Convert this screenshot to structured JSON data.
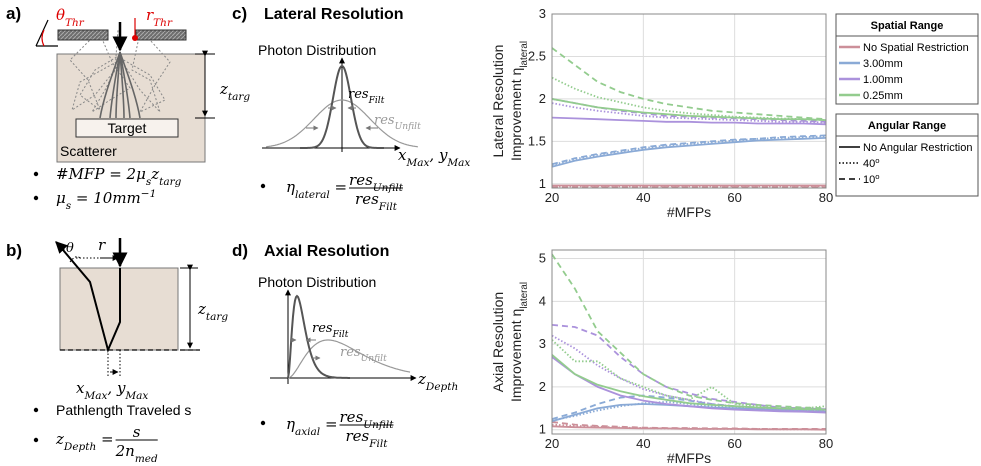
{
  "panels": {
    "a": {
      "label": "a)",
      "theta_thr": [
        {
          "text": "θ"
        },
        {
          "text": "Thr",
          "sub": true
        }
      ],
      "r_thr": [
        {
          "text": "r"
        },
        {
          "text": "Thr",
          "sub": true
        }
      ],
      "z_targ": [
        {
          "text": "z"
        },
        {
          "text": "targ",
          "sub": true
        }
      ],
      "target": "Target",
      "scatterer": "Scatterer",
      "bullets": [
        [
          {
            "text": "#MFP = 2μ"
          },
          {
            "text": "s",
            "sub": true
          },
          {
            "text": "z"
          },
          {
            "text": "targ",
            "sub": true
          }
        ],
        [
          {
            "text": "μ"
          },
          {
            "text": "s",
            "sub": true
          },
          {
            "text": " = 10mm"
          },
          {
            "text": "−1",
            "sup": true
          }
        ]
      ]
    },
    "b": {
      "label": "b)",
      "theta": "θ",
      "r": "r",
      "z_targ": [
        {
          "text": "z"
        },
        {
          "text": "targ",
          "sub": true
        }
      ],
      "xy_max": [
        {
          "text": "x"
        },
        {
          "text": "Max",
          "sub": true
        },
        {
          "text": ", y"
        },
        {
          "text": "Max",
          "sub": true
        }
      ],
      "pathlength": "Pathlength Traveled s",
      "z_depth": {
        "lhs": [
          {
            "text": "z"
          },
          {
            "text": "Depth",
            "sub": true
          },
          {
            "text": " = "
          }
        ],
        "num": [
          {
            "text": "s"
          }
        ],
        "den": [
          {
            "text": "2n"
          },
          {
            "text": "med",
            "sub": true
          }
        ]
      }
    },
    "c": {
      "label": "c)",
      "title": "Lateral Resolution",
      "subtitle": "Photon Distribution",
      "res_filt": [
        {
          "text": "res"
        },
        {
          "text": "Filt",
          "sub": true
        }
      ],
      "res_unfilt": [
        {
          "text": "res"
        },
        {
          "text": "Unfilt",
          "sub": true
        }
      ],
      "axis": [
        {
          "text": "x"
        },
        {
          "text": "Max",
          "sub": true
        },
        {
          "text": ", y"
        },
        {
          "text": "Max",
          "sub": true
        }
      ],
      "eta": {
        "lhs": [
          {
            "text": "η"
          },
          {
            "text": "lateral",
            "sub": true
          },
          {
            "text": " = "
          }
        ],
        "num": [
          {
            "text": "res"
          },
          {
            "text": "Unfilt",
            "sub": true
          }
        ],
        "den": [
          {
            "text": "res"
          },
          {
            "text": "Filt",
            "sub": true
          }
        ]
      }
    },
    "d": {
      "label": "d)",
      "title": "Axial Resolution",
      "subtitle": "Photon Distribution",
      "res_filt": [
        {
          "text": "res"
        },
        {
          "text": "Filt",
          "sub": true
        }
      ],
      "res_unfilt": [
        {
          "text": "res"
        },
        {
          "text": "Unfilt",
          "sub": true
        }
      ],
      "axis": [
        {
          "text": "z"
        },
        {
          "text": "Depth",
          "sub": true
        }
      ],
      "eta": {
        "lhs": [
          {
            "text": "η"
          },
          {
            "text": "axial",
            "sub": true
          },
          {
            "text": " = "
          }
        ],
        "num": [
          {
            "text": "res"
          },
          {
            "text": "Unfilt",
            "sub": true
          }
        ],
        "den": [
          {
            "text": "res"
          },
          {
            "text": "Filt",
            "sub": true
          }
        ]
      }
    }
  },
  "legend": {
    "groups": [
      {
        "title": "Spatial Range",
        "entries": [
          {
            "label": "No Spatial Restriction",
            "color": "#cc8f99"
          },
          {
            "label": "3.00mm",
            "color": "#8aaad6"
          },
          {
            "label": "1.00mm",
            "color": "#ab92dc"
          },
          {
            "label": "0.25mm",
            "color": "#93cc8e"
          }
        ]
      },
      {
        "title": "Angular Range",
        "entries": [
          {
            "label": "No Angular Restriction",
            "dash": "solid"
          },
          {
            "label": [
              {
                "text": "40"
              },
              {
                "text": "o",
                "sup": true
              }
            ],
            "dash": "dotted"
          },
          {
            "label": [
              {
                "text": "10"
              },
              {
                "text": "o",
                "sup": true
              }
            ],
            "dash": "dashed"
          }
        ]
      }
    ]
  },
  "chart_data": [
    {
      "type": "line",
      "ylabel": [
        [
          {
            "text": "Lateral Resolution"
          }
        ],
        [
          {
            "text": "Improvement η"
          },
          {
            "text": "lateral",
            "sub": true
          }
        ]
      ],
      "xlabel": "#MFPs",
      "xlim": [
        20,
        80
      ],
      "xticks": [
        20,
        40,
        60,
        80
      ],
      "ylim": [
        0.95,
        3
      ],
      "yticks": [
        1,
        1.5,
        2,
        2.5,
        3
      ],
      "grid": true,
      "x": [
        20,
        25,
        30,
        35,
        40,
        45,
        50,
        55,
        60,
        65,
        70,
        75,
        80
      ],
      "series": [
        {
          "color": "#cc8f99",
          "dash": "solid",
          "values": [
            0.98,
            0.98,
            0.98,
            0.98,
            0.98,
            0.98,
            0.98,
            0.98,
            0.98,
            0.98,
            0.98,
            0.98,
            0.98
          ]
        },
        {
          "color": "#cc8f99",
          "dash": "dotted",
          "values": [
            0.97,
            0.97,
            0.97,
            0.97,
            0.97,
            0.97,
            0.97,
            0.97,
            0.97,
            0.97,
            0.97,
            0.97,
            0.97
          ]
        },
        {
          "color": "#cc8f99",
          "dash": "dashed",
          "values": [
            0.96,
            0.96,
            0.96,
            0.96,
            0.96,
            0.96,
            0.96,
            0.96,
            0.96,
            0.96,
            0.96,
            0.96,
            0.96
          ]
        },
        {
          "color": "#8aaad6",
          "dash": "solid",
          "values": [
            1.2,
            1.27,
            1.32,
            1.36,
            1.4,
            1.43,
            1.45,
            1.47,
            1.49,
            1.51,
            1.52,
            1.53,
            1.54
          ]
        },
        {
          "color": "#8aaad6",
          "dash": "dotted",
          "values": [
            1.22,
            1.29,
            1.34,
            1.38,
            1.42,
            1.45,
            1.47,
            1.49,
            1.51,
            1.53,
            1.54,
            1.55,
            1.56
          ]
        },
        {
          "color": "#8aaad6",
          "dash": "dashed",
          "values": [
            1.23,
            1.3,
            1.35,
            1.39,
            1.43,
            1.46,
            1.48,
            1.5,
            1.52,
            1.53,
            1.55,
            1.56,
            1.57
          ]
        },
        {
          "color": "#ab92dc",
          "dash": "solid",
          "values": [
            1.78,
            1.77,
            1.76,
            1.75,
            1.74,
            1.73,
            1.73,
            1.72,
            1.72,
            1.71,
            1.71,
            1.71,
            1.7
          ]
        },
        {
          "color": "#ab92dc",
          "dash": "dotted",
          "values": [
            1.95,
            1.9,
            1.86,
            1.83,
            1.8,
            1.78,
            1.77,
            1.76,
            1.75,
            1.74,
            1.73,
            1.73,
            1.72
          ]
        },
        {
          "color": "#ab92dc",
          "dash": "dashed",
          "values": [
            2.0,
            1.95,
            1.9,
            1.86,
            1.83,
            1.8,
            1.79,
            1.78,
            1.77,
            1.76,
            1.75,
            1.74,
            1.73
          ]
        },
        {
          "color": "#93cc8e",
          "dash": "solid",
          "values": [
            2.0,
            1.95,
            1.9,
            1.87,
            1.84,
            1.82,
            1.8,
            1.79,
            1.78,
            1.77,
            1.76,
            1.76,
            1.75
          ]
        },
        {
          "color": "#93cc8e",
          "dash": "dotted",
          "values": [
            2.25,
            2.12,
            2.02,
            1.96,
            1.9,
            1.86,
            1.83,
            1.81,
            1.79,
            1.78,
            1.77,
            1.76,
            1.75
          ]
        },
        {
          "color": "#93cc8e",
          "dash": "dashed",
          "values": [
            2.6,
            2.4,
            2.2,
            2.08,
            2.0,
            1.94,
            1.9,
            1.86,
            1.84,
            1.82,
            1.8,
            1.78,
            1.76
          ]
        }
      ]
    },
    {
      "type": "line",
      "ylabel": [
        [
          {
            "text": "Axial Resolution"
          }
        ],
        [
          {
            "text": "Improvement η"
          },
          {
            "text": "lateral",
            "sub": true
          }
        ]
      ],
      "xlabel": "#MFPs",
      "xlim": [
        20,
        80
      ],
      "xticks": [
        20,
        40,
        60,
        80
      ],
      "ylim": [
        0.9,
        5.2
      ],
      "yticks": [
        1,
        2,
        3,
        4,
        5
      ],
      "grid": true,
      "x": [
        20,
        25,
        30,
        35,
        40,
        45,
        50,
        55,
        60,
        65,
        70,
        75,
        80
      ],
      "series": [
        {
          "color": "#cc8f99",
          "dash": "solid",
          "values": [
            1.08,
            1.06,
            1.05,
            1.04,
            1.03,
            1.03,
            1.02,
            1.02,
            1.02,
            1.01,
            1.01,
            1.01,
            1.0
          ]
        },
        {
          "color": "#cc8f99",
          "dash": "dotted",
          "values": [
            1.12,
            1.09,
            1.07,
            1.05,
            1.04,
            1.03,
            1.03,
            1.02,
            1.02,
            1.02,
            1.01,
            1.01,
            1.01
          ]
        },
        {
          "color": "#cc8f99",
          "dash": "dashed",
          "values": [
            1.18,
            1.12,
            1.09,
            1.07,
            1.05,
            1.04,
            1.04,
            1.03,
            1.03,
            1.02,
            1.02,
            1.02,
            1.02
          ]
        },
        {
          "color": "#8aaad6",
          "dash": "solid",
          "values": [
            1.2,
            1.35,
            1.5,
            1.58,
            1.6,
            1.58,
            1.55,
            1.52,
            1.5,
            1.48,
            1.46,
            1.44,
            1.42
          ]
        },
        {
          "color": "#8aaad6",
          "dash": "dotted",
          "values": [
            1.22,
            1.32,
            1.45,
            1.55,
            1.62,
            1.65,
            1.6,
            1.55,
            1.52,
            1.5,
            1.48,
            1.46,
            1.45
          ]
        },
        {
          "color": "#8aaad6",
          "dash": "dashed",
          "values": [
            1.25,
            1.4,
            1.6,
            1.75,
            1.8,
            1.75,
            1.68,
            1.6,
            1.55,
            1.52,
            1.5,
            1.48,
            1.46
          ]
        },
        {
          "color": "#ab92dc",
          "dash": "solid",
          "values": [
            2.7,
            2.3,
            2.0,
            1.8,
            1.68,
            1.6,
            1.55,
            1.5,
            1.47,
            1.45,
            1.43,
            1.42,
            1.4
          ]
        },
        {
          "color": "#ab92dc",
          "dash": "dotted",
          "values": [
            3.2,
            2.9,
            2.5,
            2.2,
            1.95,
            1.8,
            1.7,
            1.6,
            1.55,
            1.5,
            1.47,
            1.45,
            1.43
          ]
        },
        {
          "color": "#ab92dc",
          "dash": "dashed",
          "values": [
            3.45,
            3.4,
            3.2,
            2.7,
            2.3,
            2.0,
            1.85,
            1.72,
            1.65,
            1.58,
            1.52,
            1.5,
            1.48
          ]
        },
        {
          "color": "#93cc8e",
          "dash": "solid",
          "values": [
            2.75,
            2.3,
            2.05,
            1.9,
            1.78,
            1.7,
            1.62,
            1.58,
            1.55,
            1.52,
            1.5,
            1.48,
            1.47
          ]
        },
        {
          "color": "#93cc8e",
          "dash": "dotted",
          "values": [
            3.1,
            2.6,
            2.6,
            2.2,
            2.0,
            1.8,
            1.7,
            2.0,
            1.6,
            1.55,
            1.5,
            1.5,
            1.55
          ]
        },
        {
          "color": "#93cc8e",
          "dash": "dashed",
          "values": [
            5.1,
            4.3,
            3.3,
            2.8,
            2.3,
            2.0,
            1.8,
            1.7,
            1.62,
            1.58,
            1.55,
            1.52,
            1.5
          ]
        }
      ]
    }
  ]
}
